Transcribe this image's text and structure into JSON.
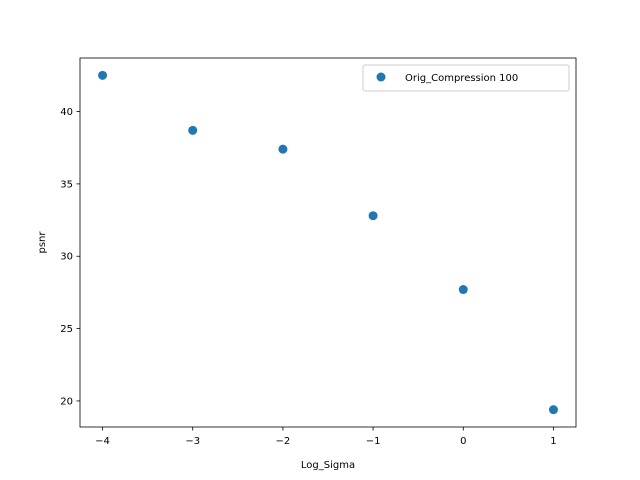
{
  "chart_data": {
    "type": "scatter",
    "title": "",
    "xlabel": "Log_Sigma",
    "ylabel": "psnr",
    "xlim": [
      -4.25,
      1.25
    ],
    "ylim": [
      18.2,
      43.7
    ],
    "xticks": [
      -4,
      -3,
      -2,
      -1,
      0,
      1
    ],
    "yticks": [
      20,
      25,
      30,
      35,
      40
    ],
    "grid": false,
    "legend_position": "top-right",
    "series": [
      {
        "name": "Orig_Compression 100",
        "color": "#1f77b4",
        "x": [
          -4,
          -3,
          -2,
          -1,
          0,
          1
        ],
        "y": [
          42.5,
          38.7,
          37.4,
          32.8,
          27.7,
          19.4
        ]
      }
    ]
  }
}
